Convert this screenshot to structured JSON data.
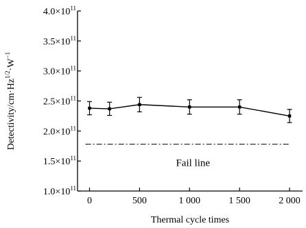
{
  "chart_data": {
    "type": "line",
    "title": "",
    "xlabel": "Thermal cycle times",
    "ylabel": "Detectivity/cm·Hz^1/2·W^-1",
    "xlim": [
      -120,
      2130
    ],
    "ylim": [
      100000000000.0,
      400000000000.0
    ],
    "grid": false,
    "x_ticks": [
      {
        "value": 0,
        "label": "0"
      },
      {
        "value": 500,
        "label": "500"
      },
      {
        "value": 1000,
        "label": "1 000"
      },
      {
        "value": 1500,
        "label": "1 500"
      },
      {
        "value": 2000,
        "label": "2 000"
      }
    ],
    "y_ticks": [
      {
        "value": 100000000000.0,
        "mantissa": "1.0×10",
        "exp": "11"
      },
      {
        "value": 150000000000.0,
        "mantissa": "1.5×10",
        "exp": "11"
      },
      {
        "value": 200000000000.0,
        "mantissa": "2.0×10",
        "exp": "11"
      },
      {
        "value": 250000000000.0,
        "mantissa": "2.5×10",
        "exp": "11"
      },
      {
        "value": 300000000000.0,
        "mantissa": "3.0×10",
        "exp": "11"
      },
      {
        "value": 350000000000.0,
        "mantissa": "3.5×10",
        "exp": "11"
      },
      {
        "value": 400000000000.0,
        "mantissa": "4.0×10",
        "exp": "11"
      }
    ],
    "series": [
      {
        "x": [
          0,
          200,
          500,
          1000,
          1500,
          2000
        ],
        "y": [
          238000000000.0,
          237000000000.0,
          244000000000.0,
          240000000000.0,
          240000000000.0,
          225000000000.0
        ],
        "error": [
          11000000000.0,
          11000000000.0,
          12000000000.0,
          12000000000.0,
          12000000000.0,
          11000000000.0
        ]
      }
    ],
    "reference_line": {
      "y": 178000000000.0,
      "x_range": [
        -40,
        2000
      ],
      "label": "Fail line"
    },
    "line_color": "#000000"
  }
}
